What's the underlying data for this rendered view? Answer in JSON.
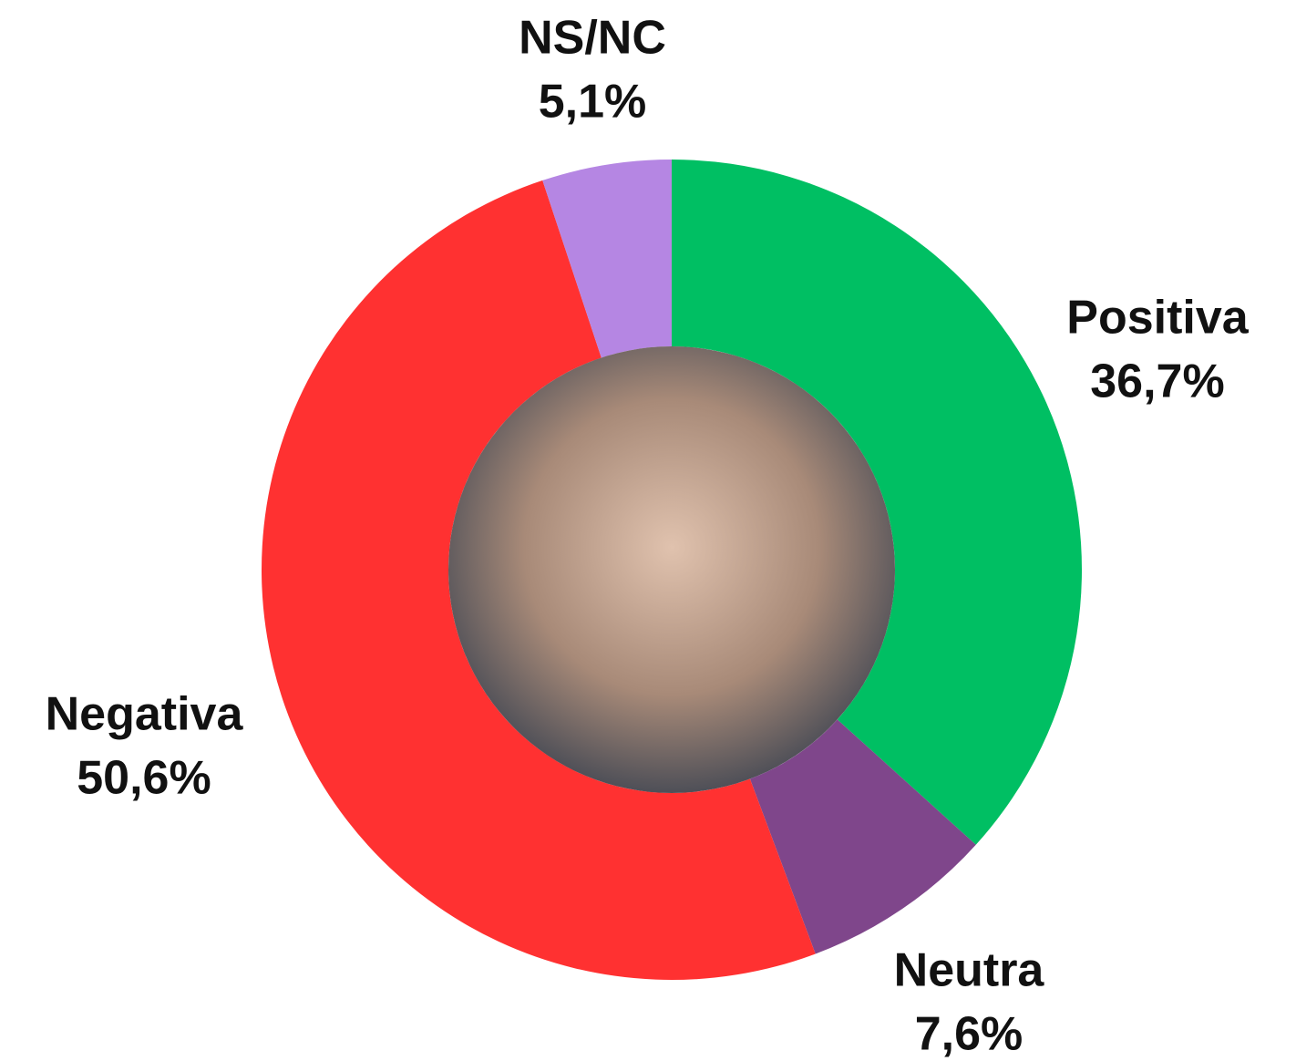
{
  "chart_data": {
    "type": "donut",
    "categories": [
      "Positiva",
      "Neutra",
      "Negativa",
      "NS/NC"
    ],
    "values": [
      36.7,
      7.6,
      50.6,
      5.1
    ],
    "value_labels": [
      "36,7%",
      "7,6%",
      "50,6%",
      "5,1%"
    ],
    "colors": [
      "#00bf63",
      "#7f468b",
      "#ff3131",
      "#b586e3"
    ]
  }
}
